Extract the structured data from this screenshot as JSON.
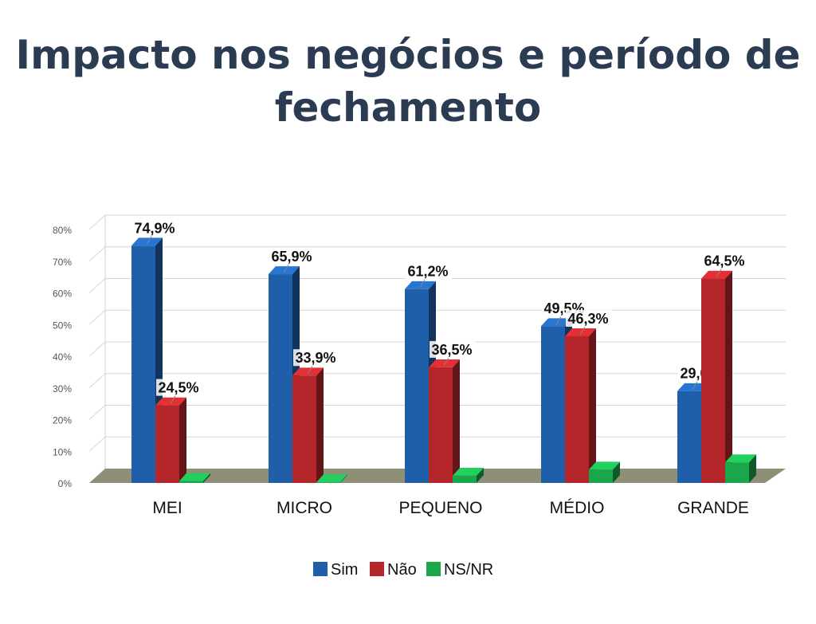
{
  "slide": {
    "title_line1": "Impacto nos negócios e período de",
    "title_line2": "fechamento"
  },
  "chart_data": {
    "type": "bar",
    "categories": [
      "MEI",
      "MICRO",
      "PEQUENO",
      "MÉDIO",
      "GRANDE"
    ],
    "series": [
      {
        "name": "Sim",
        "values": [
          74.9,
          65.9,
          61.2,
          49.5,
          29.0
        ],
        "labels": [
          "74,9%",
          "65,9%",
          "61,2%",
          "49,5%",
          "29,0%"
        ],
        "color": "#1f5ea8"
      },
      {
        "name": "Não",
        "values": [
          24.5,
          33.9,
          36.5,
          46.3,
          64.5
        ],
        "labels": [
          "24,5%",
          "33,9%",
          "36,5%",
          "46,3%",
          "64,5%"
        ],
        "color": "#b5262b"
      },
      {
        "name": "NS/NR",
        "values": [
          0.6,
          0.2,
          2.3,
          4.2,
          6.5
        ],
        "labels": [
          "",
          "",
          "",
          "",
          ""
        ],
        "color": "#1aa64a"
      }
    ],
    "ylim": [
      0,
      80
    ],
    "yticks": [
      0,
      10,
      20,
      30,
      40,
      50,
      60,
      70,
      80
    ],
    "ytick_labels": [
      "0%",
      "10%",
      "20%",
      "30%",
      "40%",
      "50%",
      "60%",
      "70%",
      "80%"
    ],
    "legend": [
      "Sim",
      "Não",
      "NS/NR"
    ],
    "legend_position": "bottom",
    "grid": true,
    "floor_color": "#8f8f78"
  }
}
